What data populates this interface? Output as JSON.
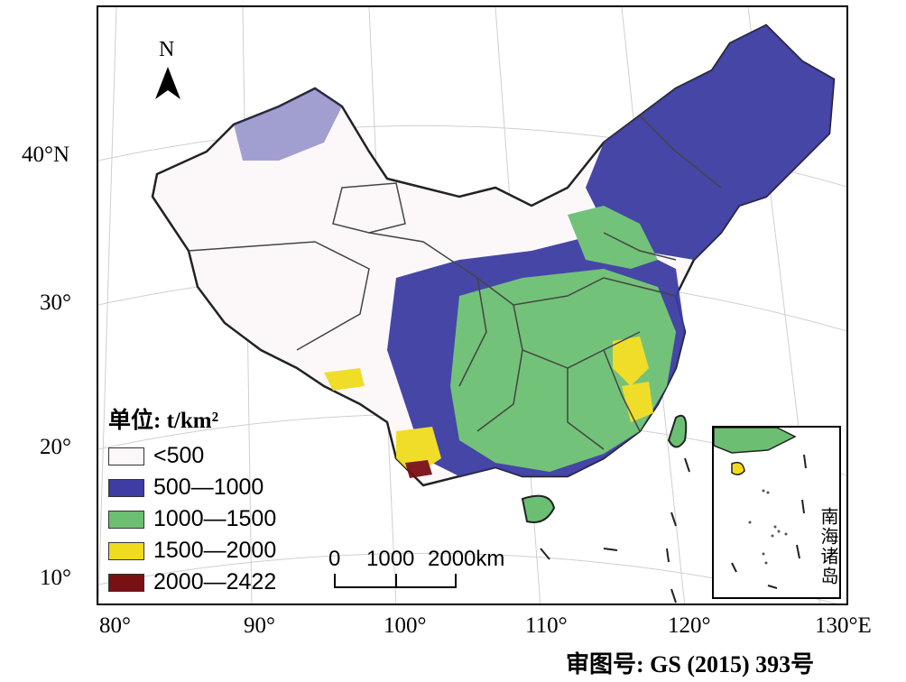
{
  "map": {
    "latitude_labels": [
      "40°N",
      "30°",
      "20°",
      "10°"
    ],
    "longitude_labels": [
      "80°",
      "90°",
      "100°",
      "110°",
      "120°",
      "130°E"
    ],
    "north_arrow": "N",
    "approval_number": "审图号: GS (2015) 393号",
    "inset_label": "南海诸岛"
  },
  "legend": {
    "title": "单位: t/km²",
    "items": [
      {
        "label": "<500",
        "color": "#fcf8fa"
      },
      {
        "label": "500—1000",
        "color": "#3d3da3"
      },
      {
        "label": "1000—1500",
        "color": "#6cbf72"
      },
      {
        "label": "1500—2000",
        "color": "#f0dc1e"
      },
      {
        "label": "2000—2422",
        "color": "#7a1014"
      }
    ]
  },
  "scale_bar": {
    "labels": [
      "0",
      "1000",
      "2000km"
    ]
  },
  "colors": {
    "border": "#333333",
    "graticule": "#cccccc"
  }
}
